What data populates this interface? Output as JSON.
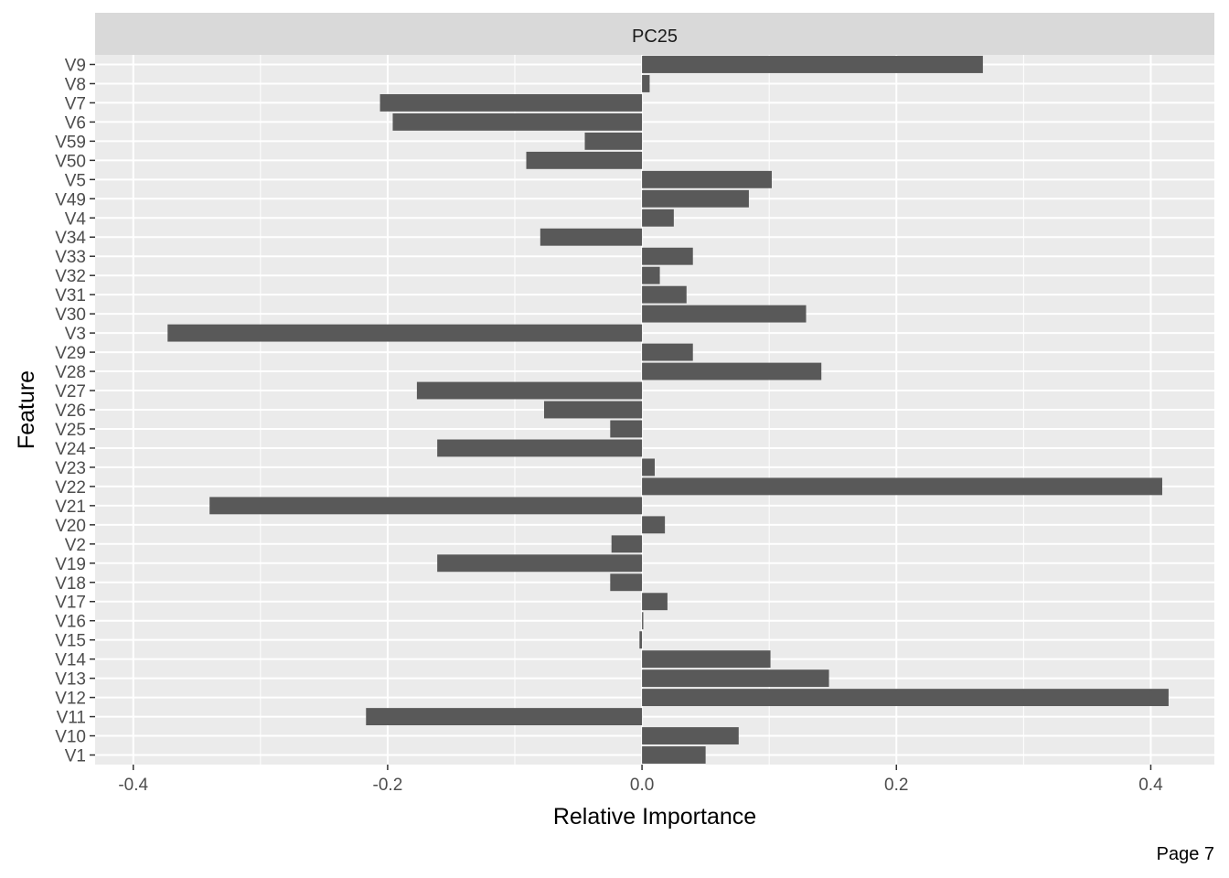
{
  "chart_data": {
    "type": "bar",
    "orientation": "horizontal",
    "facet_label": "PC25",
    "xlabel": "Relative Importance",
    "ylabel": "Feature",
    "xlim": [
      -0.43,
      0.45
    ],
    "x_ticks": [
      -0.4,
      -0.2,
      0.0,
      0.2,
      0.4
    ],
    "x_tick_labels": [
      "-0.4",
      "-0.2",
      "0.0",
      "0.2",
      "0.4"
    ],
    "grid": true,
    "categories": [
      "V1",
      "V10",
      "V11",
      "V12",
      "V13",
      "V14",
      "V15",
      "V16",
      "V17",
      "V18",
      "V19",
      "V2",
      "V20",
      "V21",
      "V22",
      "V23",
      "V24",
      "V25",
      "V26",
      "V27",
      "V28",
      "V29",
      "V3",
      "V30",
      "V31",
      "V32",
      "V33",
      "V34",
      "V4",
      "V49",
      "V5",
      "V50",
      "V59",
      "V6",
      "V7",
      "V8",
      "V9"
    ],
    "values": [
      0.05,
      0.076,
      -0.217,
      0.414,
      0.147,
      0.101,
      -0.002,
      0.001,
      0.02,
      -0.025,
      -0.161,
      -0.024,
      0.018,
      -0.34,
      0.409,
      0.01,
      -0.161,
      -0.025,
      -0.077,
      -0.177,
      0.141,
      0.04,
      -0.373,
      0.129,
      0.035,
      0.014,
      0.04,
      -0.08,
      0.025,
      0.084,
      0.102,
      -0.091,
      -0.045,
      -0.196,
      -0.206,
      0.006,
      0.268
    ],
    "colors": {
      "bar": "#595959",
      "panel": "#ebebeb",
      "strip": "#d9d9d9",
      "grid": "#ffffff"
    }
  },
  "footer": {
    "page_label": "Page 7"
  }
}
